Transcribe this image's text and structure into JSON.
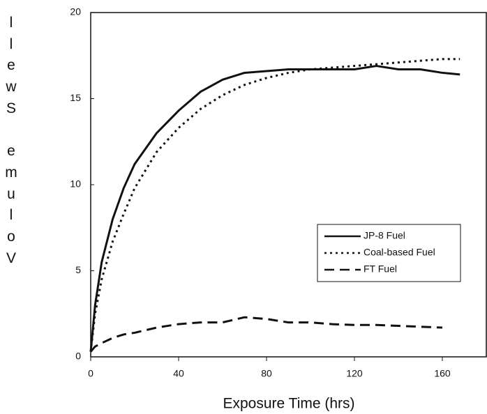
{
  "chart_data": {
    "type": "line",
    "x_label": "Exposure Time (hrs)",
    "y_label": "Volume Swell",
    "x": [
      0,
      2,
      5,
      10,
      15,
      20,
      30,
      40,
      50,
      60,
      70,
      80,
      90,
      100,
      110,
      120,
      130,
      140,
      150,
      160,
      168
    ],
    "series": [
      {
        "name": "JP-8 Fuel",
        "color": "#111111",
        "dash": "solid",
        "values": [
          0.3,
          3,
          5.5,
          8,
          9.8,
          11.2,
          13,
          14.3,
          15.4,
          16.1,
          16.5,
          16.6,
          16.7,
          16.7,
          16.7,
          16.7,
          16.9,
          16.7,
          16.7,
          16.5,
          16.4
        ]
      },
      {
        "name": "Coal-based Fuel",
        "color": "#111111",
        "dash": "dotted",
        "values": [
          0.3,
          2.5,
          4.5,
          6.7,
          8.3,
          9.8,
          11.9,
          13.3,
          14.4,
          15.2,
          15.8,
          16.2,
          16.5,
          16.7,
          16.8,
          16.9,
          17.0,
          17.1,
          17.2,
          17.3,
          17.3
        ]
      },
      {
        "name": "FT Fuel",
        "color": "#111111",
        "dash": "dashed",
        "values": [
          0.3,
          0.6,
          0.8,
          1.1,
          1.3,
          1.4,
          1.7,
          1.9,
          2.0,
          2.0,
          2.3,
          2.2,
          2.0,
          2.0,
          1.9,
          1.85,
          1.85,
          1.8,
          1.75,
          1.7,
          null
        ]
      }
    ],
    "xlim": [
      0,
      180
    ],
    "xticks": [
      0,
      40,
      80,
      120,
      160
    ],
    "ylim": [
      0,
      20
    ],
    "yticks": [
      0,
      5,
      10,
      15,
      20
    ],
    "legend": "lower-right"
  }
}
